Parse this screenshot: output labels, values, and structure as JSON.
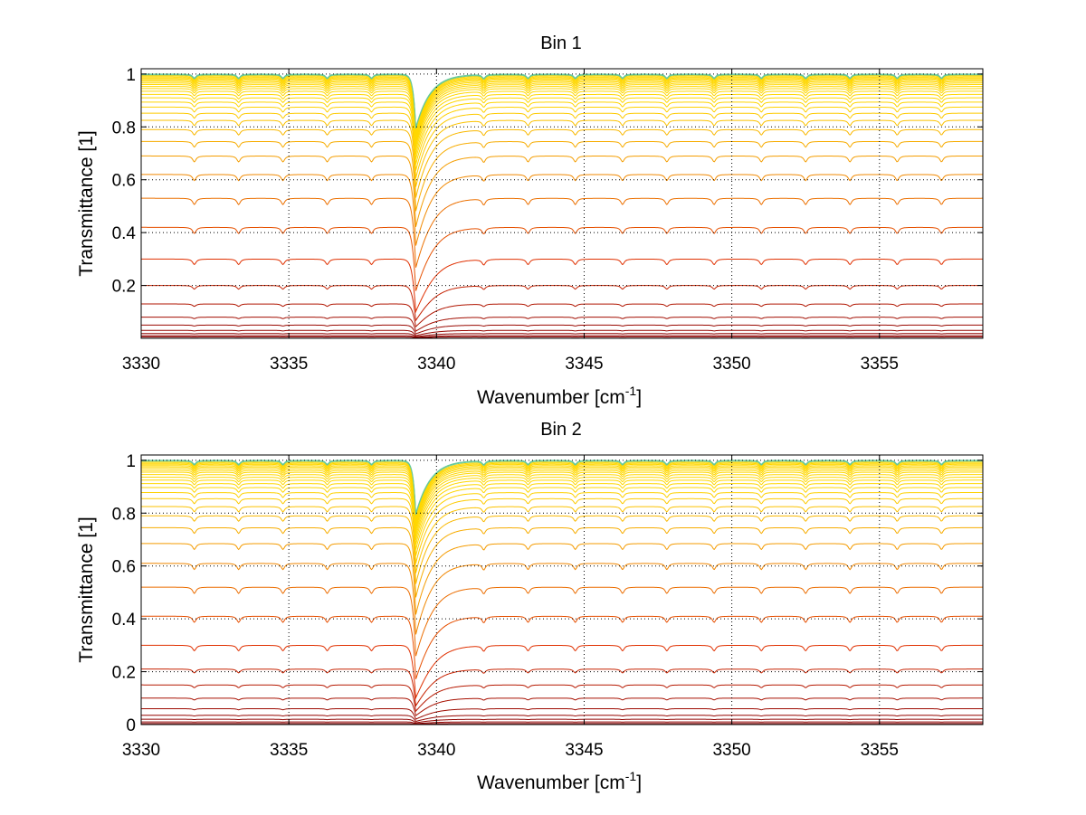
{
  "chart_data": [
    {
      "type": "line",
      "title": "Bin 1",
      "xlabel_main": "Wavenumber [cm",
      "xlabel_sup": "-1",
      "xlabel_end": "]",
      "ylabel": "Transmittance [1]",
      "xlim": [
        3330,
        3358.5
      ],
      "ylim": [
        0,
        1.02
      ],
      "xticks": [
        3330,
        3335,
        3340,
        3345,
        3350,
        3355
      ],
      "xtick_labels": [
        "3330",
        "3335",
        "3340",
        "3345",
        "3350",
        "3355"
      ],
      "yticks": [
        0.2,
        0.4,
        0.6,
        0.8,
        1
      ],
      "ytick_labels": [
        "0.2",
        "0.4",
        "0.6",
        "0.8",
        "1"
      ],
      "grid": true,
      "colormap": "autumn-jet",
      "baselines": [
        1.0,
        0.997,
        0.994,
        0.99,
        0.986,
        0.982,
        0.977,
        0.972,
        0.966,
        0.96,
        0.953,
        0.945,
        0.935,
        0.923,
        0.91,
        0.894,
        0.875,
        0.852,
        0.825,
        0.79,
        0.745,
        0.69,
        0.62,
        0.53,
        0.42,
        0.3,
        0.2,
        0.13,
        0.08,
        0.05,
        0.03,
        0.018,
        0.01,
        0.005
      ]
    },
    {
      "type": "line",
      "title": "Bin 2",
      "xlabel_main": "Wavenumber [cm",
      "xlabel_sup": "-1",
      "xlabel_end": "]",
      "ylabel": "Transmittance [1]",
      "xlim": [
        3330,
        3358.5
      ],
      "ylim": [
        0,
        1.02
      ],
      "xticks": [
        3330,
        3335,
        3340,
        3345,
        3350,
        3355
      ],
      "xtick_labels": [
        "3330",
        "3335",
        "3340",
        "3345",
        "3350",
        "3355"
      ],
      "yticks": [
        0,
        0.2,
        0.4,
        0.6,
        0.8,
        1
      ],
      "ytick_labels": [
        "0",
        "0.2",
        "0.4",
        "0.6",
        "0.8",
        "1"
      ],
      "grid": true,
      "colormap": "autumn-jet",
      "baselines": [
        1.0,
        0.997,
        0.993,
        0.989,
        0.985,
        0.98,
        0.975,
        0.969,
        0.962,
        0.955,
        0.946,
        0.936,
        0.925,
        0.912,
        0.897,
        0.878,
        0.855,
        0.825,
        0.79,
        0.745,
        0.685,
        0.61,
        0.52,
        0.41,
        0.3,
        0.21,
        0.15,
        0.1,
        0.06,
        0.035,
        0.02,
        0.01,
        0.004
      ]
    }
  ],
  "colors": {
    "axis": "#000000",
    "grid": "#000000",
    "series_low": "#8b0000",
    "series_mid": "#e03000",
    "series_high": "#ffd700",
    "series_top": "#00bfff"
  }
}
